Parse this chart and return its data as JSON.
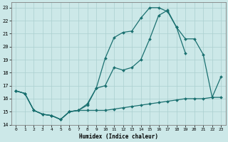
{
  "xlabel": "Humidex (Indice chaleur)",
  "bg_color": "#cce8e8",
  "grid_color": "#aacfcf",
  "line_color": "#1a7070",
  "xlim": [
    -0.5,
    23.5
  ],
  "ylim": [
    14,
    23.4
  ],
  "xticks": [
    0,
    1,
    2,
    3,
    4,
    5,
    6,
    7,
    8,
    9,
    10,
    11,
    12,
    13,
    14,
    15,
    16,
    17,
    18,
    19,
    20,
    21,
    22,
    23
  ],
  "yticks": [
    14,
    15,
    16,
    17,
    18,
    19,
    20,
    21,
    22,
    23
  ],
  "line1_x": [
    0,
    1,
    2,
    3,
    4,
    5,
    6,
    7,
    8,
    9,
    10,
    11,
    12,
    13,
    14,
    15,
    16,
    17,
    18,
    19,
    20
  ],
  "line1_y": [
    16.6,
    16.4,
    15.1,
    14.8,
    14.7,
    14.4,
    15.0,
    15.1,
    15.5,
    16.8,
    19.1,
    20.7,
    21.1,
    21.2,
    22.2,
    23.0,
    23.0,
    22.7,
    21.5,
    19.5,
    null
  ],
  "line2_x": [
    0,
    1,
    2,
    3,
    4,
    5,
    6,
    7,
    8,
    9,
    10,
    11,
    12,
    13,
    14,
    15,
    16,
    17,
    18,
    19,
    20,
    21,
    22,
    23
  ],
  "line2_y": [
    16.6,
    16.4,
    15.1,
    14.8,
    14.7,
    14.4,
    15.0,
    15.1,
    15.1,
    15.1,
    15.1,
    15.2,
    15.3,
    15.4,
    15.5,
    15.6,
    15.7,
    15.8,
    15.9,
    16.0,
    16.0,
    16.0,
    16.1,
    16.1
  ],
  "line3_x": [
    0,
    1,
    2,
    3,
    4,
    5,
    6,
    7,
    8,
    9,
    10,
    11,
    12,
    13,
    14,
    15,
    16,
    17,
    18,
    19,
    20,
    21,
    22,
    23
  ],
  "line3_y": [
    16.6,
    16.4,
    15.1,
    14.8,
    14.7,
    14.4,
    15.0,
    15.1,
    15.6,
    16.8,
    17.0,
    18.4,
    18.2,
    18.4,
    19.0,
    20.6,
    22.4,
    22.8,
    21.5,
    20.6,
    20.6,
    19.4,
    16.1,
    17.7
  ]
}
